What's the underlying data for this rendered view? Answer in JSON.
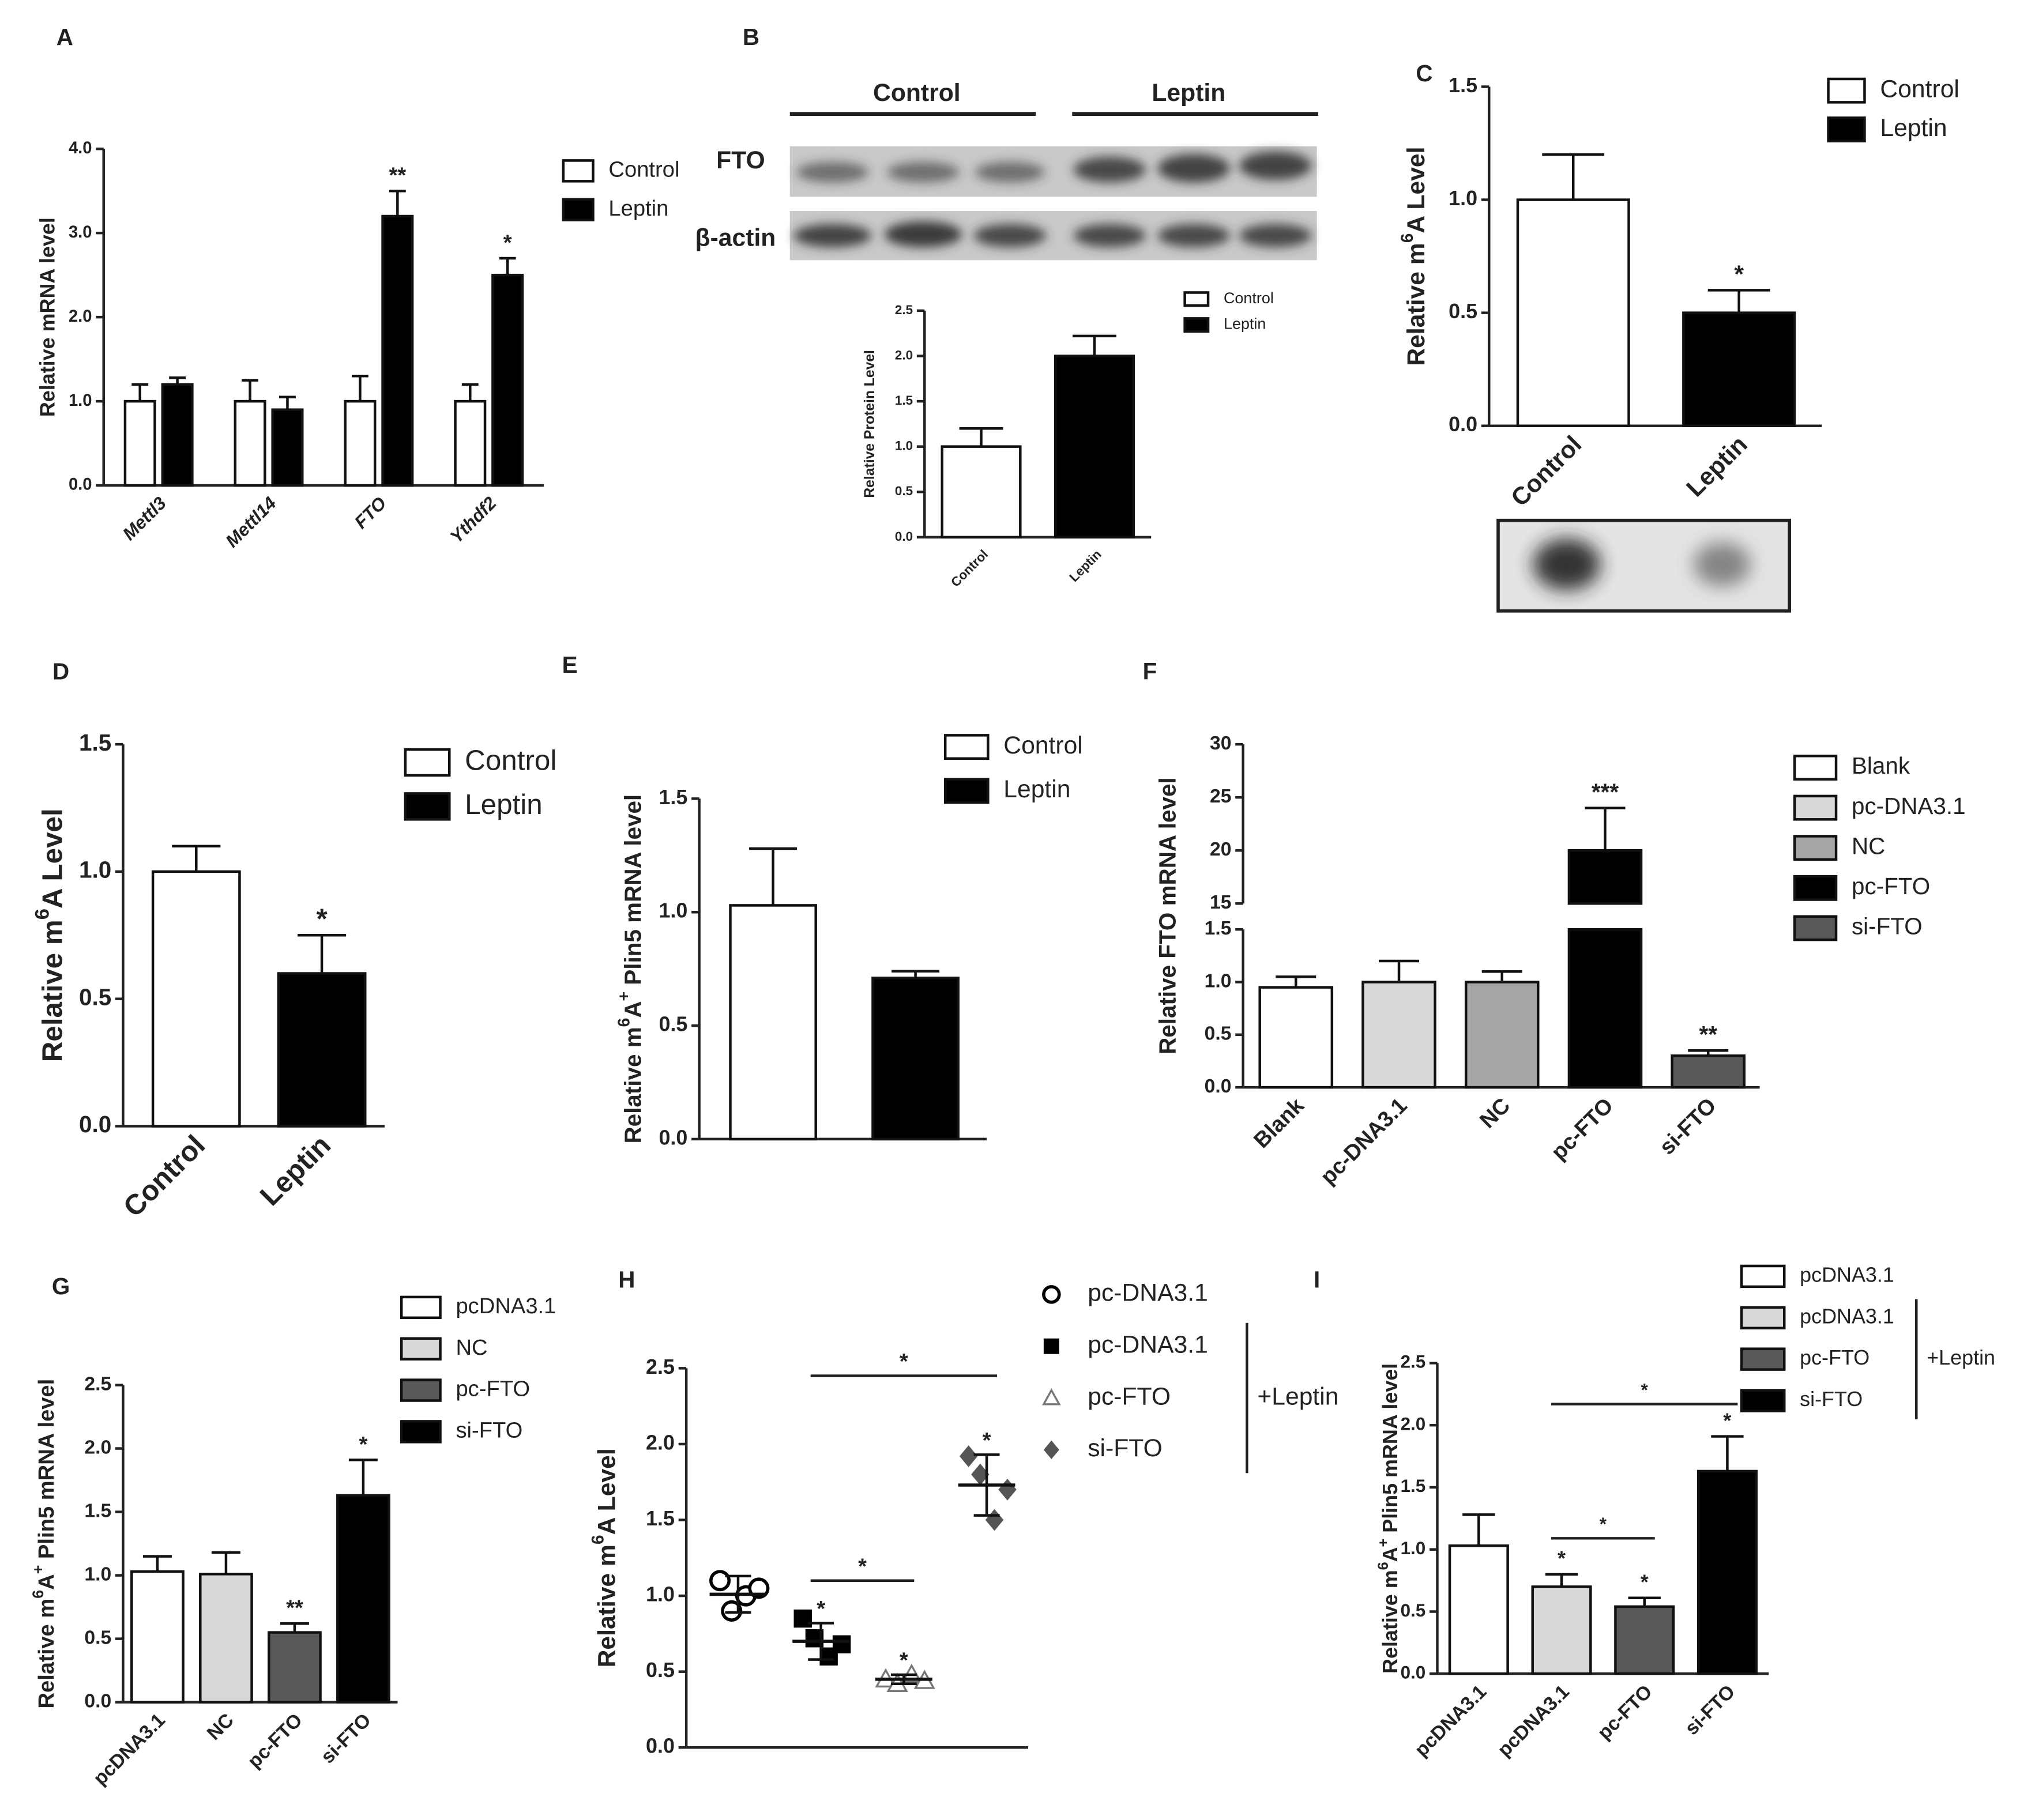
{
  "chart_data": [
    {
      "panel": "A",
      "type": "bar",
      "ylabel": [
        "Relative mRNA level"
      ],
      "categories": [
        "Mettl3",
        "Mettl14",
        "FTO",
        "Ythdf2"
      ],
      "italic_categories": true,
      "series": [
        {
          "name": "Control",
          "color": "#ffffff",
          "values": [
            1.0,
            1.0,
            1.0,
            1.0
          ],
          "errors": [
            0.2,
            0.25,
            0.3,
            0.2
          ]
        },
        {
          "name": "Leptin",
          "color": "#000000",
          "values": [
            1.2,
            0.9,
            3.2,
            2.5
          ],
          "errors": [
            0.08,
            0.15,
            0.3,
            0.2
          ],
          "significance": [
            null,
            null,
            "**",
            "*"
          ]
        }
      ],
      "ylim": [
        0,
        4
      ],
      "yticks": [
        {
          "value": 0,
          "label": "0.0"
        },
        {
          "value": 1,
          "label": "1.0"
        },
        {
          "value": 2,
          "label": "2.0"
        },
        {
          "value": 3,
          "label": "3.0"
        },
        {
          "value": 4,
          "label": "4.0"
        }
      ]
    },
    {
      "panel": "B",
      "type": "bar",
      "blot": {
        "groups": [
          "Control",
          "Leptin"
        ],
        "rows": [
          "FTO",
          "β-actin"
        ]
      },
      "ylabel": [
        "Relative Protein Level"
      ],
      "categories": [
        "Control",
        "Leptin"
      ],
      "legend": [
        "Control",
        "Leptin"
      ],
      "series": [
        {
          "colors": [
            "#ffffff",
            "#000000"
          ],
          "values": [
            1.0,
            2.0
          ],
          "errors": [
            0.2,
            0.22
          ]
        }
      ],
      "ylim": [
        0,
        2.5
      ],
      "yticks": [
        {
          "value": 0,
          "label": "0.0"
        },
        0.5,
        {
          "value": 1,
          "label": "1.0"
        },
        1.5,
        {
          "value": 2,
          "label": "2.0"
        },
        2.5
      ]
    },
    {
      "panel": "C",
      "type": "bar",
      "ylabel": [
        "Relative m",
        "6",
        "A  Level"
      ],
      "categories": [
        "Control",
        "Leptin"
      ],
      "legend": [
        "Control",
        "Leptin"
      ],
      "series": [
        {
          "colors": [
            "#ffffff",
            "#000000"
          ],
          "values": [
            1.0,
            0.5
          ],
          "errors": [
            0.2,
            0.1
          ],
          "significance": [
            null,
            "*"
          ]
        }
      ],
      "ylim": [
        0,
        1.5
      ],
      "yticks": [
        {
          "value": 0,
          "label": "0.0"
        },
        0.5,
        {
          "value": 1,
          "label": "1.0"
        },
        1.5
      ]
    },
    {
      "panel": "D",
      "type": "bar",
      "ylabel": [
        "Relative m",
        "6",
        "A  Level"
      ],
      "categories": [
        "Control",
        "Leptin"
      ],
      "legend": [
        "Control",
        "Leptin"
      ],
      "series": [
        {
          "colors": [
            "#ffffff",
            "#000000"
          ],
          "values": [
            1.0,
            0.6
          ],
          "errors": [
            0.1,
            0.15
          ],
          "significance": [
            null,
            "*"
          ]
        }
      ],
      "ylim": [
        0,
        1.5
      ],
      "yticks": [
        {
          "value": 0,
          "label": "0.0"
        },
        0.5,
        {
          "value": 1,
          "label": "1.0"
        },
        1.5
      ]
    },
    {
      "panel": "E",
      "type": "bar",
      "ylabel": [
        "Relative m",
        "6",
        "A",
        "+",
        " Plin5 mRNA level"
      ],
      "categories": [
        null,
        null
      ],
      "legend": [
        "Control",
        "Leptin"
      ],
      "series": [
        {
          "colors": [
            "#ffffff",
            "#000000"
          ],
          "values": [
            1.03,
            0.71
          ],
          "errors": [
            0.25,
            0.03
          ]
        }
      ],
      "ylim": [
        0,
        1.5
      ],
      "yticks": [
        {
          "value": 0,
          "label": "0.0"
        },
        0.5,
        {
          "value": 1,
          "label": "1.0"
        },
        1.5
      ]
    },
    {
      "panel": "F",
      "type": "bar",
      "ylabel": [
        "Relative FTO mRNA level"
      ],
      "categories": [
        "Blank",
        "pc-DNA3.1",
        "NC",
        "pc-FTO",
        "si-FTO"
      ],
      "legend": [
        "Blank",
        "pc-DNA3.1",
        "NC",
        "pc-FTO",
        "si-FTO"
      ],
      "series": [
        {
          "colors": [
            "#ffffff",
            "#d9d9d9",
            "#a6a6a6",
            "#000000",
            "#595959"
          ],
          "values": [
            0.95,
            1.0,
            1.0,
            20,
            0.3
          ],
          "errors": [
            0.1,
            0.2,
            0.1,
            4,
            0.05
          ],
          "significance": [
            null,
            null,
            null,
            "***",
            "**"
          ]
        }
      ],
      "ylim": [
        0,
        30
      ],
      "ybreak": [
        1.5,
        15
      ],
      "yticks": [
        {
          "value": 0,
          "label": "0.0"
        },
        0.5,
        {
          "value": 1,
          "label": "1.0"
        },
        1.5,
        15,
        20,
        25,
        30
      ]
    },
    {
      "panel": "G",
      "type": "bar",
      "ylabel": [
        "Relative  m",
        "6",
        "A",
        "+",
        " Plin5 mRNA level"
      ],
      "categories": [
        "pcDNA3.1",
        "NC",
        "pc-FTO",
        "si-FTO"
      ],
      "legend": [
        "pcDNA3.1",
        "NC",
        "pc-FTO",
        "si-FTO"
      ],
      "series": [
        {
          "colors": [
            "#ffffff",
            "#d9d9d9",
            "#595959",
            "#000000"
          ],
          "values": [
            1.03,
            1.01,
            0.55,
            1.63
          ],
          "errors": [
            0.12,
            0.17,
            0.07,
            0.28
          ],
          "significance": [
            null,
            null,
            "**",
            "*"
          ]
        }
      ],
      "ylim": [
        0,
        2.5
      ],
      "yticks": [
        {
          "value": 0,
          "label": "0.0"
        },
        0.5,
        {
          "value": 1,
          "label": "1.0"
        },
        1.5,
        {
          "value": 2,
          "label": "2.0"
        },
        2.5
      ]
    },
    {
      "panel": "H",
      "type": "scatter",
      "ylabel": [
        "Relative m",
        "6",
        "A  Level"
      ],
      "categories": [
        null,
        null,
        null,
        null
      ],
      "series": [
        {
          "name": "pc-DNA3.1",
          "marker": "open-circle",
          "color": "#000000",
          "values": [
            1.1,
            0.9,
            1.0,
            1.05
          ],
          "mean": 1.01,
          "sd": 0.12
        },
        {
          "name": "pc-DNA3.1",
          "marker": "square",
          "color": "#000000",
          "values": [
            0.85,
            0.72,
            0.6,
            0.68
          ],
          "mean": 0.7,
          "sd": 0.12
        },
        {
          "name": "pc-FTO",
          "marker": "open-triangle",
          "color": "#777777",
          "values": [
            0.45,
            0.42,
            0.48,
            0.44
          ],
          "mean": 0.45,
          "sd": 0.03
        },
        {
          "name": "si-FTO",
          "marker": "diamond",
          "color": "#555555",
          "values": [
            1.92,
            1.8,
            1.5,
            1.7
          ],
          "mean": 1.73,
          "sd": 0.2
        }
      ],
      "significance": [
        null,
        "*",
        "*",
        "*"
      ],
      "comparisons": [
        {
          "text": "*",
          "y": 2.45,
          "between": [
            1,
            3
          ]
        },
        {
          "text": "*",
          "y": 1.1,
          "between": [
            1,
            2
          ]
        }
      ],
      "legend_group": {
        "label": "+Leptin",
        "from": 1,
        "to": 3
      },
      "ylim": [
        0,
        2.5
      ],
      "yticks": [
        {
          "value": 0,
          "label": "0.0"
        },
        0.5,
        {
          "value": 1,
          "label": "1.0"
        },
        1.5,
        {
          "value": 2,
          "label": "2.0"
        },
        2.5
      ]
    },
    {
      "panel": "I",
      "type": "bar",
      "ylabel": [
        "Relative m",
        "6",
        "A",
        "+",
        " Plin5 mRNA level"
      ],
      "categories": [
        "pcDNA3.1",
        "pcDNA3.1",
        "pc-FTO",
        "si-FTO"
      ],
      "legend": [
        "pcDNA3.1",
        "pcDNA3.1",
        "pc-FTO",
        "si-FTO"
      ],
      "series": [
        {
          "colors": [
            "#ffffff",
            "#d9d9d9",
            "#595959",
            "#000000"
          ],
          "values": [
            1.03,
            0.7,
            0.54,
            1.63
          ],
          "errors": [
            0.25,
            0.1,
            0.07,
            0.28
          ],
          "significance": [
            null,
            "*",
            "*",
            "*"
          ]
        }
      ],
      "comparisons": [
        {
          "text": "*",
          "y": 2.17,
          "between": [
            1,
            3
          ]
        },
        {
          "text": "*",
          "y": 1.09,
          "between": [
            1,
            2
          ]
        }
      ],
      "legend_group": {
        "label": "+Leptin",
        "from": 1,
        "to": 3
      },
      "ylim": [
        0,
        2.5
      ],
      "yticks": [
        {
          "value": 0,
          "label": "0.0"
        },
        0.5,
        {
          "value": 1,
          "label": "1.0"
        },
        1.5,
        {
          "value": 2,
          "label": "2.0"
        },
        2.5
      ]
    }
  ]
}
